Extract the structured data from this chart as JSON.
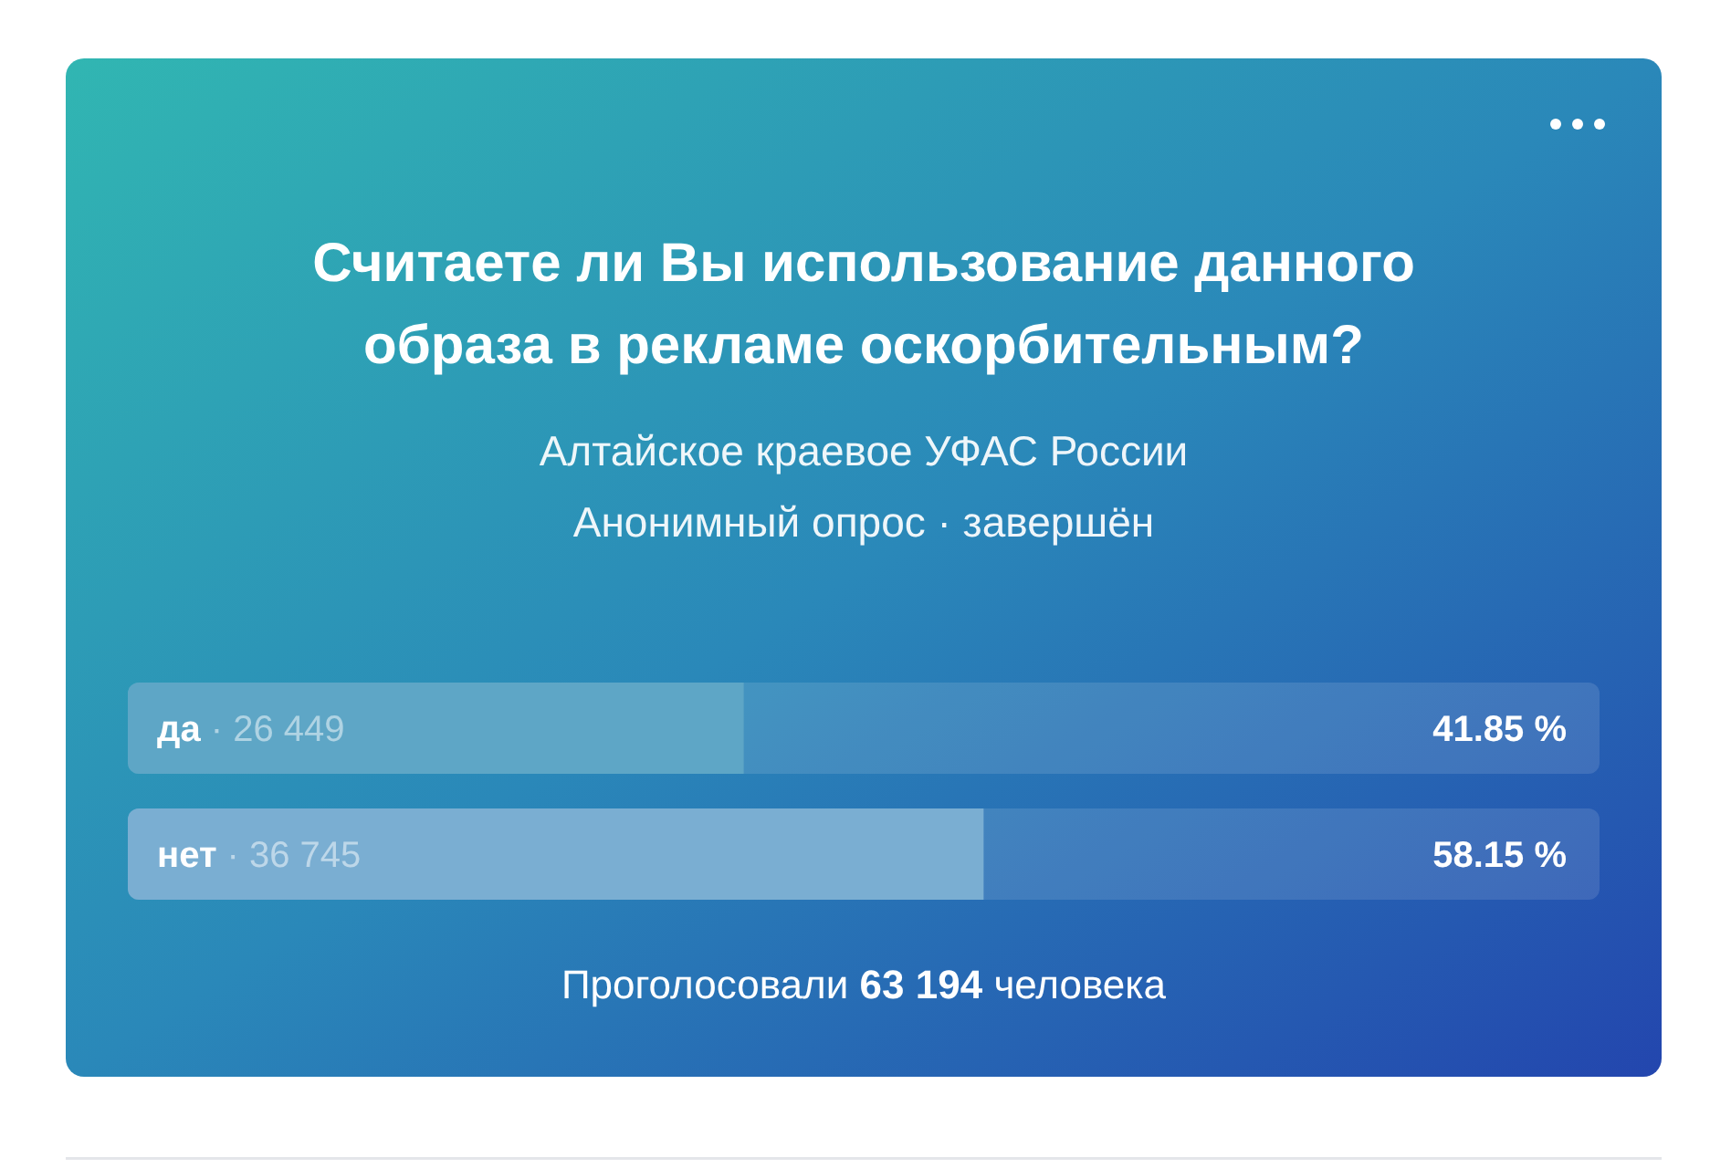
{
  "chart_data": {
    "type": "bar",
    "orientation": "horizontal",
    "title": "Считаете ли Вы использование данного образа в рекламе оскорбительным?",
    "subtitle": "Алтайское краевое УФАС России\nАнонимный опрос · завершён",
    "categories": [
      "да · 26 449",
      "нет · 36 745"
    ],
    "values": [
      41.85,
      58.15
    ],
    "colors": [
      "#5ea6c6",
      "#7aaed2"
    ],
    "value_labels": [
      "41.85 %",
      "58.15 %"
    ],
    "xlim": [
      0,
      100
    ],
    "tick_labels": "y",
    "annotations": [
      "Проголосовали 63 194 человека"
    ]
  }
}
